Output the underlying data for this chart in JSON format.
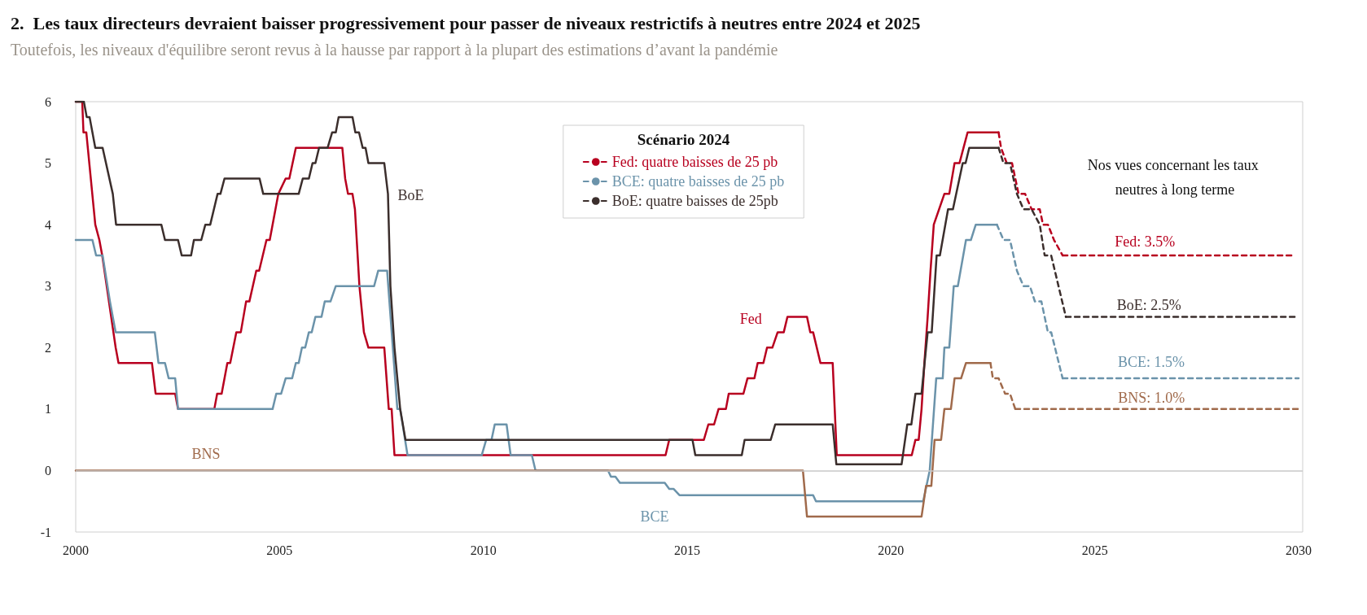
{
  "chart_data": {
    "type": "line",
    "title": "2.  Les taux directeurs devraient baisser progressivement pour passer de niveaux restrictifs à neutres entre 2024 et 2025",
    "subtitle": "Toutefois, les niveaux d'équilibre seront revus à la hausse par rapport à la plupart des estimations d’avant la pandémie",
    "legend_title": "Scénario 2024",
    "legend": "top",
    "grid": false,
    "marker": "none",
    "line_style": "solid",
    "xlim": [
      2000,
      2030.1
    ],
    "xticks": [
      2000,
      2005,
      2010,
      2015,
      2020,
      2025,
      2030
    ],
    "ylim": [
      -1,
      6
    ],
    "yticks": [
      -1,
      0,
      1,
      2,
      3,
      4,
      5,
      6
    ],
    "ref_lines": [
      {
        "axis": "y",
        "value": 0,
        "color": "#c8c8c8"
      }
    ],
    "series": [
      {
        "name": "Fed",
        "color": "#b8001f",
        "x": [
          2000,
          2000.16,
          2000.19,
          2000.26,
          2000.48,
          2000.58,
          2000.65,
          2000.98,
          2001.05,
          2001.87,
          2001.96,
          2002.44,
          2002.51,
          2003.4,
          2003.47,
          2003.58,
          2003.72,
          2003.79,
          2003.94,
          2004.05,
          2004.18,
          2004.26,
          2004.43,
          2004.5,
          2004.68,
          2004.76,
          2004.97,
          2005.15,
          2005.24,
          2005.4,
          2006.54,
          2006.61,
          2006.68,
          2006.79,
          2006.85,
          2006.96,
          2007.07,
          2007.18,
          2007.57,
          2007.68,
          2007.75,
          2007.82,
          2014.47,
          2014.56,
          2015.41,
          2015.52,
          2015.66,
          2015.77,
          2015.95,
          2016.02,
          2016.38,
          2016.48,
          2016.65,
          2016.73,
          2016.87,
          2016.96,
          2017.09,
          2017.22,
          2017.37,
          2017.46,
          2017.94,
          2018.02,
          2018.09,
          2018.27,
          2018.57,
          2018.67,
          2020.51,
          2020.6,
          2020.68,
          2020.75,
          2020.82,
          2020.9,
          2020.97,
          2021.05,
          2021.31,
          2021.43,
          2021.56,
          2021.68,
          2021.78,
          2021.88,
          2022.64
        ],
        "values": [
          6,
          6,
          5.5,
          5.5,
          4,
          3.75,
          3.5,
          2,
          1.75,
          1.75,
          1.25,
          1.25,
          1,
          1,
          1.25,
          1.25,
          1.75,
          1.75,
          2.25,
          2.25,
          2.75,
          2.75,
          3.25,
          3.25,
          3.75,
          3.75,
          4.5,
          4.75,
          4.75,
          5.25,
          5.25,
          4.75,
          4.5,
          4.5,
          4.25,
          3,
          2.25,
          2,
          2,
          1,
          1,
          0.25,
          0.25,
          0.5,
          0.5,
          0.75,
          0.75,
          1,
          1,
          1.25,
          1.25,
          1.5,
          1.5,
          1.75,
          1.75,
          2,
          2,
          2.25,
          2.25,
          2.5,
          2.5,
          2.25,
          2.25,
          1.75,
          1.75,
          0.25,
          0.25,
          0.5,
          0.5,
          1,
          1.75,
          2.5,
          3.25,
          4,
          4.5,
          4.5,
          5,
          5,
          5.25,
          5.5,
          5.5
        ]
      },
      {
        "name": "Fed: quatre baisses de 25 pb",
        "color": "#b8001f",
        "line_style": "dashed",
        "x": [
          2022.64,
          2022.7,
          2022.84,
          2022.97,
          2023.13,
          2023.29,
          2023.45,
          2023.65,
          2023.73,
          2023.85,
          2024.0,
          2024.21
        ],
        "values": [
          5.5,
          5.25,
          5,
          5,
          4.5,
          4.5,
          4.25,
          4.25,
          4,
          4,
          3.75,
          3.5
        ]
      },
      {
        "name": "Fed: 3.5%",
        "color": "#b8001f",
        "line_style": "dashed",
        "x": [
          2024.21,
          2029.85
        ],
        "values": [
          3.5,
          3.5
        ]
      },
      {
        "name": "BCE",
        "color": "#6b93aa",
        "x": [
          2000,
          2000.41,
          2000.5,
          2000.66,
          2000.84,
          2000.98,
          2001.94,
          2002.03,
          2002.19,
          2002.28,
          2002.44,
          2002.51,
          2004.83,
          2004.92,
          2005.04,
          2005.15,
          2005.31,
          2005.4,
          2005.47,
          2005.55,
          2005.63,
          2005.72,
          2005.79,
          2005.88,
          2006.03,
          2006.11,
          2006.25,
          2006.38,
          2007.32,
          2007.42,
          2007.64,
          2007.89,
          2007.96,
          2008.14,
          2009.96,
          2010.07,
          2010.2,
          2010.28,
          2010.57,
          2010.67,
          2011.19,
          2011.28,
          2013.06,
          2013.13,
          2013.24,
          2013.35,
          2014.45,
          2014.56,
          2014.67,
          2014.81,
          2018.09,
          2018.16,
          2020.79,
          2020.95,
          2021.11,
          2021.27,
          2021.31,
          2021.43,
          2021.54,
          2021.64,
          2021.84,
          2021.96,
          2022.08,
          2022.6
        ],
        "values": [
          3.75,
          3.75,
          3.5,
          3.5,
          2.75,
          2.25,
          2.25,
          1.75,
          1.75,
          1.5,
          1.5,
          1,
          1,
          1.25,
          1.25,
          1.5,
          1.5,
          1.75,
          1.75,
          2,
          2,
          2.25,
          2.25,
          2.5,
          2.5,
          2.75,
          2.75,
          3,
          3,
          3.25,
          3.25,
          1,
          1,
          0.25,
          0.25,
          0.5,
          0.5,
          0.75,
          0.75,
          0.25,
          0.25,
          0,
          0,
          -0.1,
          -0.1,
          -0.2,
          -0.2,
          -0.3,
          -0.3,
          -0.4,
          -0.4,
          -0.5,
          -0.5,
          0,
          1.5,
          1.5,
          2,
          2,
          3,
          3,
          3.75,
          3.75,
          4,
          4
        ]
      },
      {
        "name": "BCE: quatre baisses de 25 pb",
        "color": "#6b93aa",
        "line_style": "dashed",
        "x": [
          2022.6,
          2022.76,
          2022.92,
          2023.09,
          2023.25,
          2023.41,
          2023.53,
          2023.69,
          2023.85,
          2023.93,
          2024.21
        ],
        "values": [
          4,
          3.75,
          3.75,
          3.25,
          3,
          3,
          2.75,
          2.75,
          2.25,
          2.25,
          1.5
        ]
      },
      {
        "name": "BCE: 1.5%",
        "color": "#6b93aa",
        "line_style": "dashed",
        "x": [
          2024.21,
          2030
        ],
        "values": [
          1.5,
          1.5
        ]
      },
      {
        "name": "BoE",
        "color": "#3b2e2c",
        "x": [
          2000,
          2000.2,
          2000.27,
          2000.34,
          2000.48,
          2000.66,
          2000.91,
          2000.99,
          2002.1,
          2002.19,
          2002.51,
          2002.6,
          2002.83,
          2002.9,
          2003.08,
          2003.18,
          2003.3,
          2003.48,
          2003.55,
          2003.65,
          2004.51,
          2004.6,
          2005.47,
          2005.57,
          2005.72,
          2005.81,
          2005.88,
          2005.97,
          2006.18,
          2006.29,
          2006.38,
          2006.45,
          2006.79,
          2006.86,
          2006.95,
          2007.04,
          2007.11,
          2007.18,
          2007.57,
          2007.66,
          2007.72,
          2007.82,
          2007.96,
          2008.09,
          2015.13,
          2015.2,
          2016.34,
          2016.41,
          2017.05,
          2017.16,
          2018.57,
          2018.66,
          2020.26,
          2020.4,
          2020.5,
          2020.6,
          2020.75,
          2020.9,
          2021.0,
          2021.12,
          2021.2,
          2021.4,
          2021.52,
          2021.76,
          2021.83,
          2021.92,
          2022.64
        ],
        "values": [
          6,
          6,
          5.75,
          5.75,
          5.25,
          5.25,
          4.5,
          4,
          4,
          3.75,
          3.75,
          3.5,
          3.5,
          3.75,
          3.75,
          4,
          4,
          4.5,
          4.5,
          4.75,
          4.75,
          4.5,
          4.5,
          4.75,
          4.75,
          5,
          5,
          5.25,
          5.25,
          5.5,
          5.5,
          5.75,
          5.75,
          5.5,
          5.5,
          5.25,
          5.25,
          5,
          5,
          4.5,
          3,
          2,
          1,
          0.5,
          0.5,
          0.25,
          0.25,
          0.5,
          0.5,
          0.75,
          0.75,
          0.1,
          0.1,
          0.75,
          0.75,
          1.25,
          1.25,
          2.25,
          2.25,
          3.5,
          3.5,
          4.25,
          4.25,
          5,
          5,
          5.25,
          5.25
        ]
      },
      {
        "name": "BoE: quatre baisses de 25pb",
        "color": "#3b2e2c",
        "line_style": "dashed",
        "x": [
          2022.64,
          2022.76,
          2022.92,
          2023.09,
          2023.25,
          2023.45,
          2023.65,
          2023.77,
          2023.93,
          2024.29
        ],
        "values": [
          5.25,
          5,
          5,
          4.5,
          4.25,
          4.25,
          4,
          3.5,
          3.5,
          2.5
        ]
      },
      {
        "name": "BoE: 2.5%",
        "color": "#3b2e2c",
        "line_style": "dashed",
        "x": [
          2024.29,
          2029.97
        ],
        "values": [
          2.5,
          2.5
        ]
      },
      {
        "name": "BNS",
        "color": "#a06a4b",
        "x": [
          2000,
          2017.84,
          2017.94,
          2020.75,
          2020.86,
          2020.99,
          2021.07,
          2021.23,
          2021.31,
          2021.47,
          2021.56,
          2021.72,
          2021.84,
          2022.44
        ],
        "values": [
          0,
          0,
          -0.75,
          -0.75,
          -0.25,
          -0.25,
          0.5,
          0.5,
          1,
          1,
          1.5,
          1.5,
          1.75,
          1.75
        ]
      },
      {
        "color": "#a06a4b",
        "line_style": "dashed",
        "x": [
          2022.44,
          2022.5,
          2022.64,
          2022.8,
          2022.92,
          2023.05
        ],
        "values": [
          1.75,
          1.5,
          1.5,
          1.25,
          1.25,
          1
        ]
      },
      {
        "name": "BNS: 1.0%",
        "color": "#a06a4b",
        "line_style": "dashed",
        "x": [
          2023.05,
          2030.05
        ],
        "values": [
          1,
          1
        ]
      }
    ],
    "annotations": [
      "Nos vues concernant les taux neutres à long terme"
    ]
  }
}
